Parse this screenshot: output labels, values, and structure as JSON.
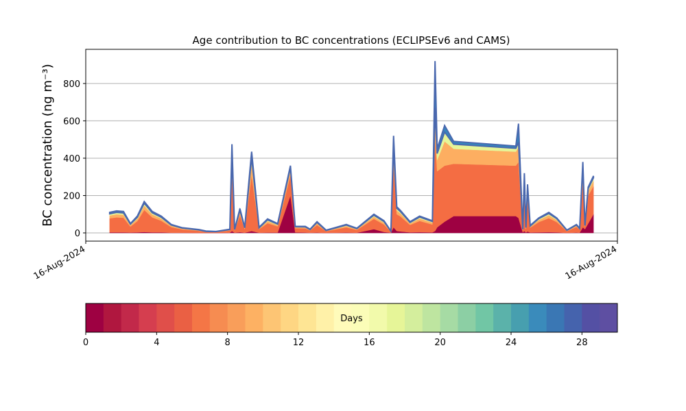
{
  "chart_data": {
    "type": "stacked_area",
    "title": "Age contribution to BC concentrations (ECLIPSEv6 and CAMS)",
    "y_label": "BC concentration (ng m⁻³)",
    "xlim": [
      0,
      100
    ],
    "xticks": [
      {
        "value": 0,
        "label": "16-Aug-2024"
      },
      {
        "value": 100,
        "label": "16-Aug-2024"
      }
    ],
    "ylim": [
      -44,
      983
    ],
    "yticks": [
      0,
      200,
      400,
      600,
      800
    ],
    "grid": true,
    "x": [
      4.5,
      5.8,
      7.1,
      8.4,
      9.7,
      11,
      12.5,
      14.2,
      16.1,
      18.1,
      21.3,
      22.6,
      24.5,
      27.1,
      27.5,
      28,
      29,
      29.9,
      31.2,
      32.6,
      34.2,
      36.1,
      38.5,
      39.4,
      41.3,
      42.2,
      43.5,
      45.2,
      46.5,
      49,
      51,
      54.2,
      56.1,
      57.4,
      57.9,
      58.5,
      59.2,
      61,
      62.8,
      65.2,
      65.7,
      66.1,
      67.5,
      69.2,
      80.9,
      81.4,
      82.2,
      82.5,
      82.8,
      83.1,
      83.6,
      85.2,
      87.1,
      88.6,
      90.5,
      92.3,
      92.9,
      93.5,
      93.9,
      94.5,
      95.5
    ],
    "series": [
      {
        "color": "#9e0142",
        "values": [
          3,
          3,
          3,
          2,
          3,
          5,
          3,
          3,
          1,
          1,
          0,
          0,
          0,
          1,
          10,
          1,
          4,
          1,
          10,
          1,
          2,
          2,
          200,
          3,
          2,
          1,
          2,
          0,
          1,
          2,
          1,
          20,
          5,
          1,
          30,
          10,
          8,
          3,
          4,
          3,
          10,
          30,
          60,
          90,
          90,
          80,
          3,
          10,
          2,
          8,
          2,
          3,
          4,
          3,
          0,
          2,
          1,
          30,
          20,
          50,
          100
        ]
      },
      {
        "color": "#f46d43",
        "values": [
          75,
          80,
          78,
          32,
          60,
          118,
          80,
          62,
          30,
          18,
          11,
          5,
          4,
          12,
          300,
          12,
          90,
          19,
          300,
          19,
          50,
          33,
          110,
          22,
          22,
          12,
          40,
          9,
          15,
          28,
          15,
          55,
          40,
          5,
          330,
          90,
          80,
          40,
          60,
          42,
          500,
          300,
          300,
          280,
          270,
          300,
          12,
          200,
          19,
          170,
          26,
          55,
          75,
          55,
          9,
          30,
          16,
          250,
          14,
          150,
          150
        ]
      },
      {
        "color": "#fdae61",
        "values": [
          15,
          17,
          16,
          8,
          13,
          23,
          16,
          12,
          7,
          4,
          3,
          2,
          2,
          3,
          60,
          3,
          18,
          4,
          60,
          4,
          11,
          7,
          25,
          5,
          5,
          3,
          9,
          2,
          4,
          7,
          4,
          12,
          10,
          2,
          60,
          20,
          16,
          8,
          13,
          10,
          100,
          60,
          130,
          80,
          75,
          80,
          2,
          50,
          4,
          40,
          6,
          11,
          16,
          11,
          3,
          6,
          4,
          50,
          3,
          25,
          30
        ]
      },
      {
        "color": "#e6f598",
        "values": [
          9,
          10,
          10,
          5,
          8,
          13,
          9,
          7,
          4,
          3,
          2,
          1,
          1,
          2,
          40,
          2,
          10,
          3,
          35,
          3,
          7,
          5,
          15,
          3,
          3,
          2,
          5,
          2,
          3,
          5,
          3,
          8,
          6,
          1,
          40,
          12,
          10,
          5,
          8,
          6,
          60,
          35,
          50,
          25,
          18,
          25,
          2,
          30,
          3,
          22,
          3,
          7,
          9,
          7,
          2,
          4,
          2,
          25,
          2,
          12,
          15
        ]
      },
      {
        "color": "#3288bd",
        "values": [
          8,
          8,
          8,
          3,
          6,
          9,
          7,
          6,
          3,
          2,
          2,
          2,
          1,
          2,
          65,
          2,
          8,
          3,
          30,
          3,
          5,
          3,
          10,
          2,
          3,
          2,
          4,
          2,
          2,
          3,
          2,
          5,
          4,
          1,
          60,
          8,
          6,
          4,
          5,
          4,
          250,
          25,
          35,
          15,
          12,
          100,
          1,
          30,
          2,
          20,
          3,
          4,
          6,
          4,
          1,
          3,
          2,
          25,
          1,
          8,
          10
        ]
      }
    ],
    "colorbar": {
      "label": "Days",
      "lim": [
        0,
        30
      ],
      "ticks": [
        0,
        4,
        8,
        12,
        16,
        20,
        24,
        28
      ],
      "colors": [
        "#9e0142",
        "#b0173f",
        "#c2294a",
        "#d53e4f",
        "#e04f4a",
        "#ea6044",
        "#f47646",
        "#f68c51",
        "#f99e5a",
        "#fdb163",
        "#fdc574",
        "#fed683",
        "#fee594",
        "#fff1a8",
        "#fffbba",
        "#fbfdb8",
        "#f2faab",
        "#e6f598",
        "#d4ee9d",
        "#bee5a0",
        "#a6dba4",
        "#8ccfa4",
        "#71c6a5",
        "#5bb2aa",
        "#479faf",
        "#3a8bbb",
        "#3a77b4",
        "#4563ad",
        "#5450a4",
        "#5e4fa2"
      ]
    }
  }
}
